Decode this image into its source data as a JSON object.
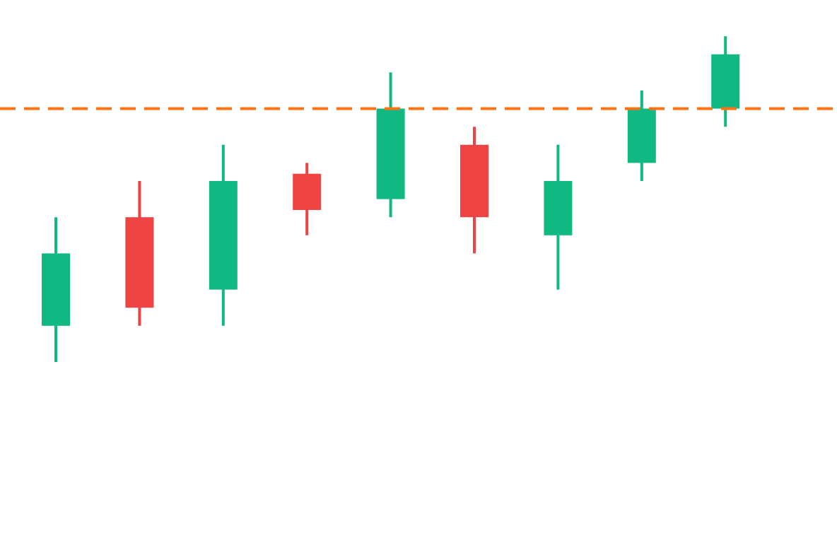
{
  "chart_data": {
    "type": "candlestick",
    "title": "",
    "xlabel": "",
    "ylabel": "",
    "ylim": [
      0,
      30
    ],
    "grid": false,
    "candles": [
      {
        "open": 12,
        "high": 18,
        "low": 10,
        "close": 16
      },
      {
        "open": 18,
        "high": 20,
        "low": 12,
        "close": 13
      },
      {
        "open": 14,
        "high": 22,
        "low": 12,
        "close": 20
      },
      {
        "open": 20.4,
        "high": 21,
        "low": 17,
        "close": 18.4
      },
      {
        "open": 19,
        "high": 26,
        "low": 18,
        "close": 24
      },
      {
        "open": 22,
        "high": 23,
        "low": 16,
        "close": 18
      },
      {
        "open": 17,
        "high": 22,
        "low": 14,
        "close": 20
      },
      {
        "open": 21,
        "high": 25,
        "low": 20,
        "close": 24
      },
      {
        "open": 24,
        "high": 28,
        "low": 23,
        "close": 27
      }
    ],
    "reference_line": {
      "value": 24,
      "style": "dashed",
      "color": "#f97316"
    },
    "colors": {
      "up": "#10b981",
      "down": "#ef4444"
    }
  }
}
